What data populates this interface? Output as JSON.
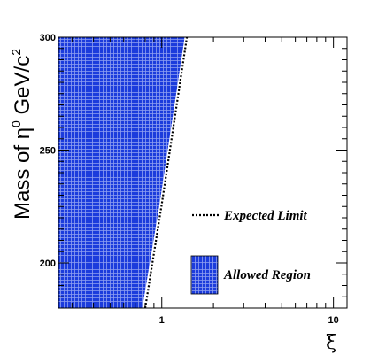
{
  "chart_data": {
    "type": "area",
    "x_scale": "log",
    "xlim": [
      0.25,
      12
    ],
    "ylim": [
      180,
      300
    ],
    "x_ticks": [
      1,
      10
    ],
    "x_tick_labels": [
      "1",
      "10"
    ],
    "y_ticks": [
      200,
      250,
      300
    ],
    "y_tick_labels": [
      "200",
      "250",
      "300"
    ],
    "xlabel": "ξ",
    "ylabel_main": "Mass of η",
    "ylabel_sup1": "0",
    "ylabel_unit": " GeV/c",
    "ylabel_sup2": "2",
    "grid": false,
    "legend_position": "bottom-right",
    "series": [
      {
        "name": "Allowed Region",
        "kind": "filled-region",
        "color": "#1c3cdc",
        "x": [
          0.77,
          0.97,
          1.36
        ],
        "y": [
          180,
          226,
          300
        ]
      },
      {
        "name": "Expected Limit",
        "kind": "dotted-line",
        "color": "#000000",
        "x": [
          0.8,
          1.0,
          1.4
        ],
        "y": [
          180,
          226,
          300
        ]
      }
    ],
    "legend": [
      {
        "label": "Expected Limit",
        "style": "dotted-line"
      },
      {
        "label": "Allowed Region",
        "style": "hatched-box"
      }
    ]
  }
}
